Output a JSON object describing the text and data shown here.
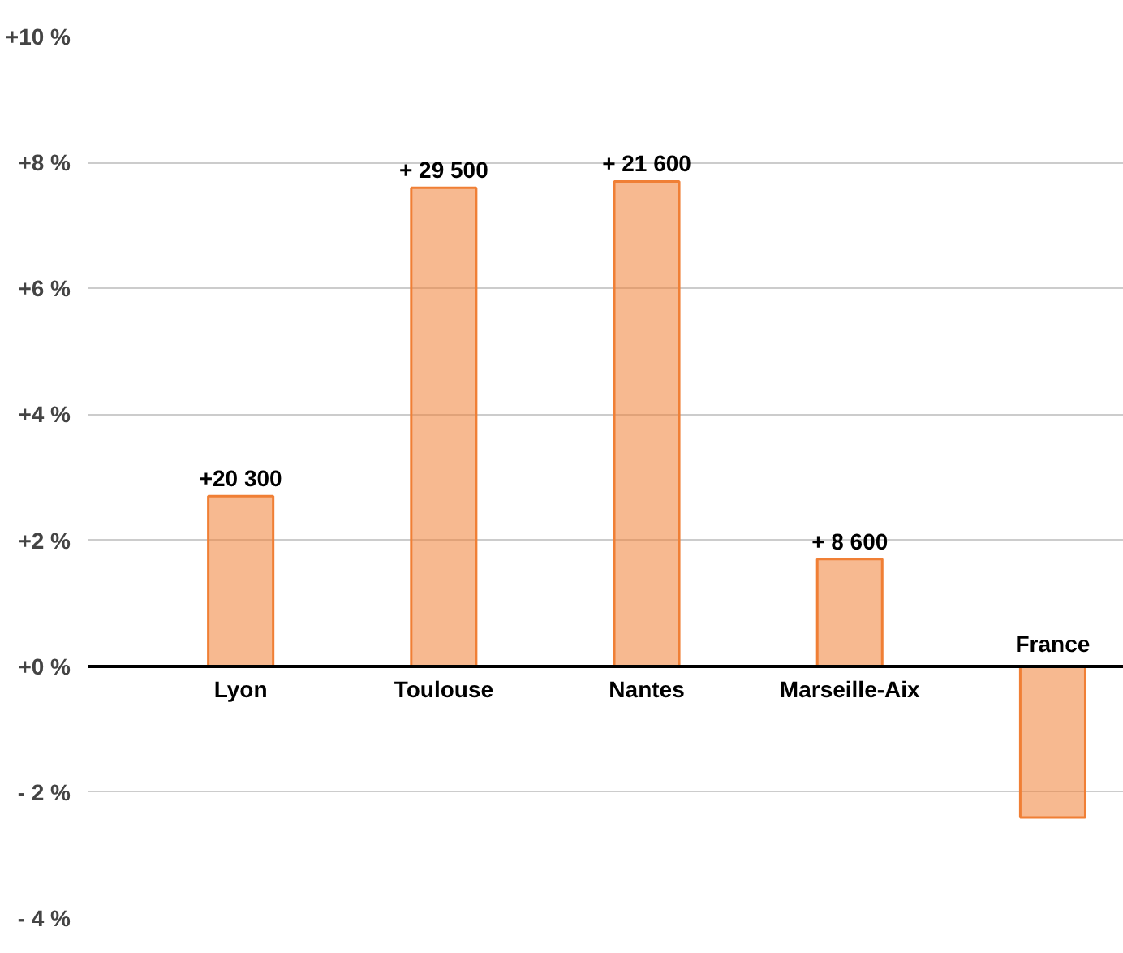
{
  "chart_data": {
    "type": "bar",
    "categories": [
      "Lyon",
      "Toulouse",
      "Nantes",
      "Marseille-Aix",
      "France"
    ],
    "values": [
      2.7,
      7.6,
      7.7,
      1.7,
      -2.4
    ],
    "annotations": [
      {
        "text": "+20 300",
        "x": "Lyon",
        "y": 2.7
      },
      {
        "text": "+ 29 500",
        "x": "Toulouse",
        "y": 7.6
      },
      {
        "text": "+ 21 600",
        "x": "Nantes",
        "y": 7.7
      },
      {
        "text": "+ 8 600",
        "x": "Marseille-Aix",
        "y": 1.7
      }
    ],
    "color": "#f07f35",
    "ylim": [
      -4,
      10
    ],
    "yticks": [
      {
        "value": 10,
        "label": "+10 %"
      },
      {
        "value": 8,
        "label": "+8 %"
      },
      {
        "value": 6,
        "label": "+6 %"
      },
      {
        "value": 4,
        "label": "+4 %"
      },
      {
        "value": 2,
        "label": "+2 %"
      },
      {
        "value": 0,
        "label": "+0 %"
      },
      {
        "value": -2,
        "label": "- 2 %"
      },
      {
        "value": -4,
        "label": "- 4 %"
      }
    ],
    "grid": "y",
    "tick_labels": "y"
  }
}
